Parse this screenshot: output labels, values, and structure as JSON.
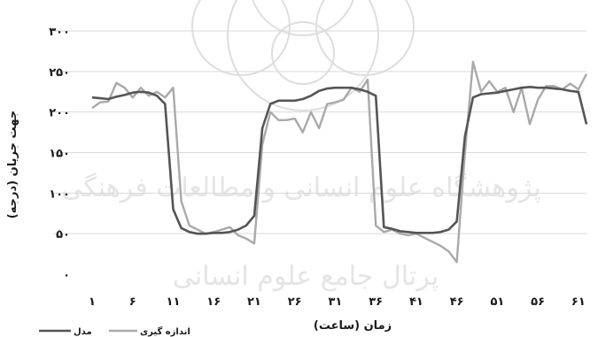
{
  "chart_data": {
    "type": "line",
    "xlabel": "زمان (ساعت)",
    "ylabel": "جهت جریان (درجه)",
    "ylim": [
      0,
      300
    ],
    "y_ticks": [
      0,
      50,
      100,
      150,
      200,
      250,
      300
    ],
    "y_tick_labels": [
      "۰",
      "۵۰",
      "۱۰۰",
      "۱۵۰",
      "۲۰۰",
      "۲۵۰",
      "۳۰۰"
    ],
    "x_ticks": [
      1,
      6,
      11,
      16,
      21,
      26,
      31,
      36,
      41,
      46,
      51,
      56,
      61
    ],
    "x_tick_labels": [
      "۱",
      "۶",
      "۱۱",
      "۱۶",
      "۲۱",
      "۲۶",
      "۳۱",
      "۳۶",
      "۴۱",
      "۴۶",
      "۵۱",
      "۵۶",
      "۶۱"
    ],
    "xlim": [
      1,
      62
    ],
    "grid": "horizontal",
    "legend_position": "bottom-left",
    "series": [
      {
        "name": "مدل",
        "color": "#555555",
        "x": [
          1,
          2,
          3,
          4,
          5,
          6,
          7,
          8,
          9,
          10,
          11,
          12,
          13,
          14,
          15,
          16,
          17,
          18,
          19,
          20,
          21,
          22,
          23,
          24,
          25,
          26,
          27,
          28,
          29,
          30,
          31,
          32,
          33,
          34,
          35,
          36,
          37,
          38,
          39,
          40,
          41,
          42,
          43,
          44,
          45,
          46,
          47,
          48,
          49,
          50,
          51,
          52,
          53,
          54,
          55,
          56,
          57,
          58,
          59,
          60,
          61,
          62
        ],
        "values": [
          218,
          217,
          216,
          219,
          221,
          224,
          225,
          224,
          220,
          210,
          80,
          57,
          52,
          50,
          50,
          51,
          51,
          52,
          55,
          60,
          72,
          180,
          210,
          214,
          214,
          214,
          216,
          220,
          226,
          229,
          230,
          230,
          230,
          228,
          225,
          220,
          58,
          56,
          53,
          52,
          51,
          51,
          51,
          52,
          55,
          65,
          170,
          218,
          222,
          223,
          224,
          226,
          228,
          230,
          231,
          230,
          230,
          229,
          228,
          226,
          225,
          185
        ]
      },
      {
        "name": "اندازه گیری",
        "color": "#a9a9a9",
        "x": [
          1,
          2,
          3,
          4,
          5,
          6,
          7,
          8,
          9,
          10,
          11,
          12,
          13,
          14,
          15,
          16,
          17,
          18,
          19,
          20,
          21,
          22,
          23,
          24,
          25,
          26,
          27,
          28,
          29,
          30,
          31,
          32,
          33,
          34,
          35,
          36,
          37,
          38,
          39,
          40,
          41,
          42,
          43,
          44,
          45,
          46,
          47,
          48,
          49,
          50,
          51,
          52,
          53,
          54,
          55,
          56,
          57,
          58,
          59,
          60,
          61,
          62
        ],
        "values": [
          205,
          212,
          213,
          236,
          230,
          218,
          230,
          220,
          225,
          218,
          230,
          90,
          60,
          55,
          50,
          52,
          55,
          58,
          48,
          44,
          38,
          160,
          200,
          190,
          190,
          192,
          175,
          200,
          180,
          210,
          212,
          215,
          230,
          225,
          240,
          60,
          52,
          55,
          50,
          48,
          50,
          45,
          40,
          35,
          28,
          15,
          150,
          262,
          225,
          238,
          225,
          230,
          200,
          230,
          185,
          215,
          232,
          232,
          228,
          235,
          228,
          247
        ]
      }
    ]
  }
}
